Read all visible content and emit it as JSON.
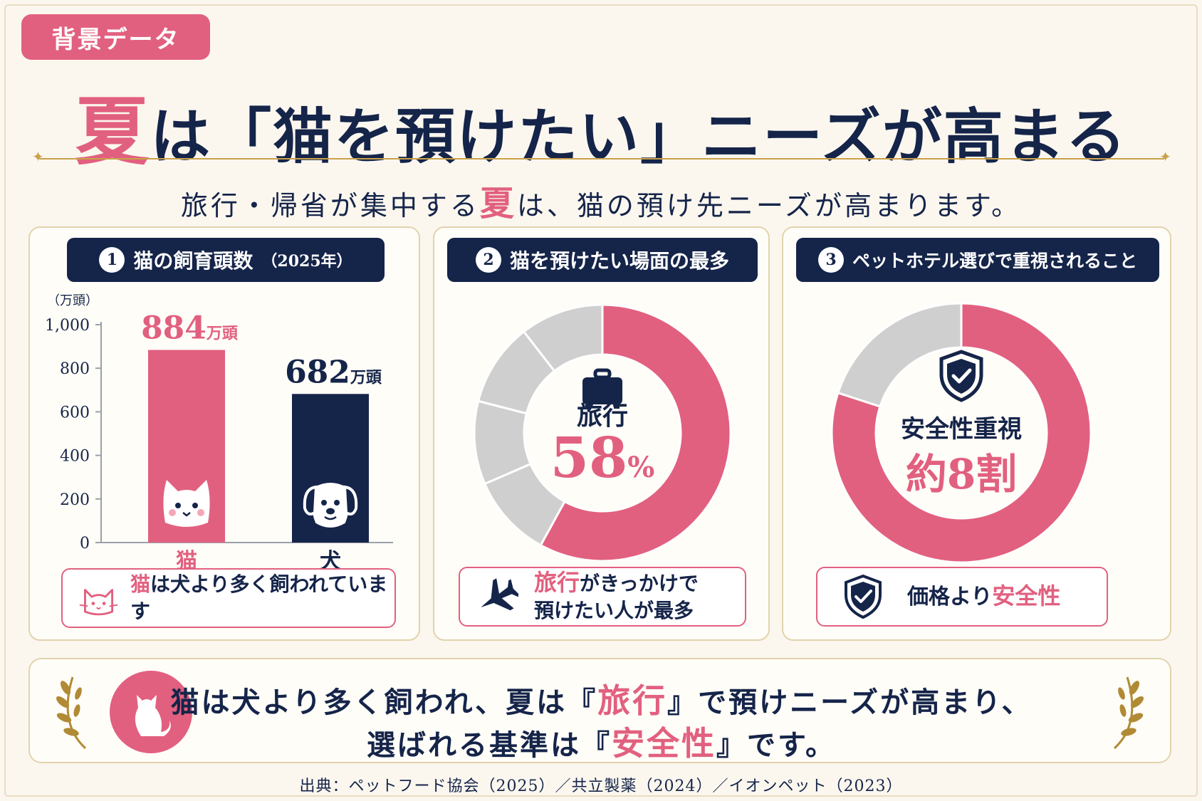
{
  "tag": "背景データ",
  "title": {
    "highlight": "夏",
    "rest": "は「猫を預けたい」ニーズが高まる"
  },
  "subtitle": {
    "before": "旅行・帰省が集中する",
    "highlight": "夏",
    "after": "は、猫の預け先ニーズが高まります。"
  },
  "panel1": {
    "number": "1",
    "heading": "猫の飼育頭数",
    "heading_small": "（2025年）",
    "note": {
      "pink": "猫",
      "rest": "は犬より多く飼われています"
    }
  },
  "panel2": {
    "number": "2",
    "heading": "猫を預けたい場面の最多",
    "center_label": "旅行",
    "note": {
      "pink": "旅行",
      "line1_rest": "がきっかけで",
      "line2": "預けたい人が最多"
    }
  },
  "panel3": {
    "number": "3",
    "heading": "ペットホテル選びで重視されること",
    "center_label": "安全性重視",
    "note": {
      "rest": "価格より",
      "pink": "安全性"
    }
  },
  "summary": {
    "line1_before": "猫は犬より多く飼われ、夏は『",
    "line1_pink": "旅行",
    "line1_after": "』で預けニーズが高まり、",
    "line2_before": "選ばれる基準は『",
    "line2_pink": "安全性",
    "line2_after": "』です。"
  },
  "source": "出典：ペットフード協会（2025）／共立製薬（2024）／イオンペット（2023）",
  "colors": {
    "pink": "#e2607f",
    "navy": "#152449",
    "gold": "#c9a24a",
    "grey": "#cfcfcf"
  },
  "chart_data": [
    {
      "type": "bar",
      "categories": [
        "猫",
        "犬"
      ],
      "values": [
        884,
        682
      ],
      "value_labels": [
        "884",
        "682"
      ],
      "value_unit": "万頭",
      "ylabel": "（万頭）",
      "ylim": [
        0,
        1000
      ],
      "yticks": [
        "0",
        "200",
        "400",
        "600",
        "800",
        "1,000"
      ],
      "colors": [
        "#e2607f",
        "#152449"
      ],
      "icons": [
        "cat-face-icon",
        "dog-face-icon"
      ],
      "grid": false
    },
    {
      "type": "pie",
      "style": "donut",
      "slices": [
        {
          "value": 58,
          "color": "#e2607f"
        },
        {
          "value": 10.5,
          "color": "#cfcfcf"
        },
        {
          "value": 10.5,
          "color": "#cfcfcf"
        },
        {
          "value": 10.5,
          "color": "#cfcfcf"
        },
        {
          "value": 10.5,
          "color": "#cfcfcf"
        }
      ],
      "center_value": "58",
      "center_unit": "%",
      "icon": "suitcase-icon"
    },
    {
      "type": "pie",
      "style": "donut",
      "slices": [
        {
          "value": 80,
          "color": "#e2607f"
        },
        {
          "value": 20,
          "color": "#cfcfcf"
        }
      ],
      "center_value": "約8割",
      "icon": "shield-check-icon"
    }
  ]
}
